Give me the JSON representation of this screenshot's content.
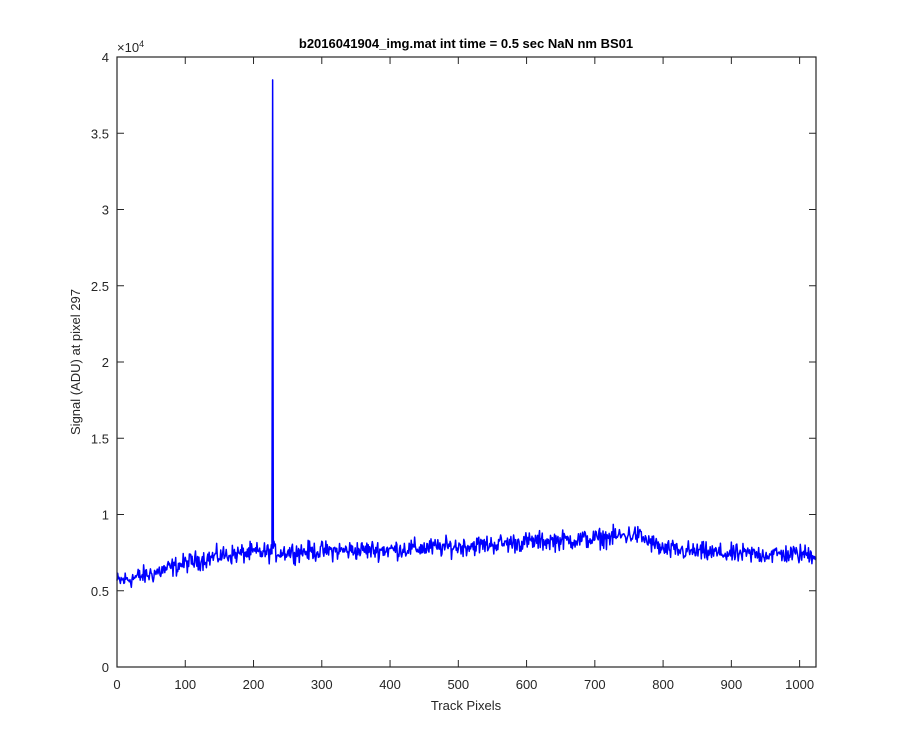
{
  "chart_data": {
    "type": "line",
    "title": "b2016041904_img.mat int time = 0.5 sec  NaN nm BS01",
    "xlabel": "Track Pixels",
    "ylabel": "Signal (ADU) at pixel 297",
    "xlim": [
      0,
      1024
    ],
    "ylim": [
      0,
      40000
    ],
    "y_exponent_label": "×10",
    "y_exponent_power": "4",
    "x_ticks": [
      0,
      100,
      200,
      300,
      400,
      500,
      600,
      700,
      800,
      900,
      1000
    ],
    "x_tick_labels": [
      "0",
      "100",
      "200",
      "300",
      "400",
      "500",
      "600",
      "700",
      "800",
      "900",
      "1000"
    ],
    "y_ticks": [
      0,
      5000,
      10000,
      15000,
      20000,
      25000,
      30000,
      35000,
      40000
    ],
    "y_tick_labels": [
      "0",
      "0.5",
      "1",
      "1.5",
      "2",
      "2.5",
      "3",
      "3.5",
      "4"
    ],
    "grid": false,
    "series": [
      {
        "color": "#0000ff",
        "baseline_points": [
          {
            "x": 0,
            "y": 5600
          },
          {
            "x": 50,
            "y": 6100
          },
          {
            "x": 100,
            "y": 6800
          },
          {
            "x": 150,
            "y": 7300
          },
          {
            "x": 200,
            "y": 7500
          },
          {
            "x": 300,
            "y": 7600
          },
          {
            "x": 400,
            "y": 7700
          },
          {
            "x": 500,
            "y": 7900
          },
          {
            "x": 600,
            "y": 8200
          },
          {
            "x": 700,
            "y": 8400
          },
          {
            "x": 760,
            "y": 8700
          },
          {
            "x": 800,
            "y": 7700
          },
          {
            "x": 900,
            "y": 7400
          },
          {
            "x": 1024,
            "y": 7400
          }
        ],
        "noise_amplitude": 450,
        "spike": {
          "x": 228,
          "y": 38500
        }
      }
    ]
  }
}
